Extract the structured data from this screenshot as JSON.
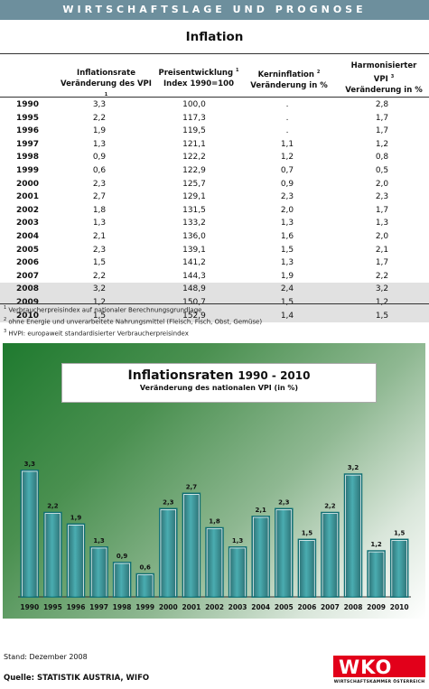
{
  "banner": "WIRTSCHAFTSLAGE UND PROGNOSE",
  "table_title": "Inflation",
  "headers": {
    "c1_line1": "Inflationsrate",
    "c1_line2": "Veränderung des VPI",
    "c1_sup": "1",
    "c2_line1": "Preisentwicklung",
    "c2_sup": "1",
    "c2_line2": "Index 1990=100",
    "c3_line1": "Kerninflation",
    "c3_sup": "2",
    "c3_line2": "Veränderung in %",
    "c4_line1": "Harmonisierter",
    "c4_line2": "VPI",
    "c4_sup": "3",
    "c4_line3": "Veränderung in %"
  },
  "rows": [
    {
      "year": "1990",
      "rate": "3,3",
      "index": "100,0",
      "core": ".",
      "hvpi": "2,8"
    },
    {
      "year": "1995",
      "rate": "2,2",
      "index": "117,3",
      "core": ".",
      "hvpi": "1,7"
    },
    {
      "year": "1996",
      "rate": "1,9",
      "index": "119,5",
      "core": ".",
      "hvpi": "1,7"
    },
    {
      "year": "1997",
      "rate": "1,3",
      "index": "121,1",
      "core": "1,1",
      "hvpi": "1,2"
    },
    {
      "year": "1998",
      "rate": "0,9",
      "index": "122,2",
      "core": "1,2",
      "hvpi": "0,8"
    },
    {
      "year": "1999",
      "rate": "0,6",
      "index": "122,9",
      "core": "0,7",
      "hvpi": "0,5"
    },
    {
      "year": "2000",
      "rate": "2,3",
      "index": "125,7",
      "core": "0,9",
      "hvpi": "2,0"
    },
    {
      "year": "2001",
      "rate": "2,7",
      "index": "129,1",
      "core": "2,3",
      "hvpi": "2,3"
    },
    {
      "year": "2002",
      "rate": "1,8",
      "index": "131,5",
      "core": "2,0",
      "hvpi": "1,7"
    },
    {
      "year": "2003",
      "rate": "1,3",
      "index": "133,2",
      "core": "1,3",
      "hvpi": "1,3"
    },
    {
      "year": "2004",
      "rate": "2,1",
      "index": "136,0",
      "core": "1,6",
      "hvpi": "2,0"
    },
    {
      "year": "2005",
      "rate": "2,3",
      "index": "139,1",
      "core": "1,5",
      "hvpi": "2,1"
    },
    {
      "year": "2006",
      "rate": "1,5",
      "index": "141,2",
      "core": "1,3",
      "hvpi": "1,7"
    },
    {
      "year": "2007",
      "rate": "2,2",
      "index": "144,3",
      "core": "1,9",
      "hvpi": "2,2"
    },
    {
      "year": "2008",
      "rate": "3,2",
      "index": "148,9",
      "core": "2,4",
      "hvpi": "3,2",
      "forecast": true
    },
    {
      "year": "2009",
      "rate": "1,2",
      "index": "150,7",
      "core": "1,5",
      "hvpi": "1,2",
      "forecast": true
    },
    {
      "year": "2010",
      "rate": "1,5",
      "index": "152,9",
      "core": "1,4",
      "hvpi": "1,5",
      "forecast": true
    }
  ],
  "footnotes": [
    {
      "num": "1",
      "text": "Verbraucherpreisindex auf nationaler Berechnungsgrundlage"
    },
    {
      "num": "2",
      "text": "ohne Energie und unverarbeitete Nahrungsmittel (Fleisch, Fisch, Obst, Gemüse)"
    },
    {
      "num": "3",
      "text": "HVPI: europaweit standardisierter Verbraucherpreisindex"
    }
  ],
  "chart_data": {
    "type": "bar",
    "title": "Inflationsraten",
    "title_years": "1990 - 2010",
    "subtitle": "Veränderung des nationalen VPI (in %)",
    "categories": [
      "1990",
      "1995",
      "1996",
      "1997",
      "1998",
      "1999",
      "2000",
      "2001",
      "2002",
      "2003",
      "2004",
      "2005",
      "2006",
      "2007",
      "2008",
      "2009",
      "2010"
    ],
    "values": [
      3.3,
      2.2,
      1.9,
      1.3,
      0.9,
      0.6,
      2.3,
      2.7,
      1.8,
      1.3,
      2.1,
      2.3,
      1.5,
      2.2,
      3.2,
      1.2,
      1.5
    ],
    "value_labels": [
      "3,3",
      "2,2",
      "1,9",
      "1,3",
      "0,9",
      "0,6",
      "2,3",
      "2,7",
      "1,8",
      "1,3",
      "2,1",
      "2,3",
      "1,5",
      "2,2",
      "3,2",
      "1,2",
      "1,5"
    ],
    "ylim": [
      0,
      3.5
    ],
    "grid": false,
    "legend": false,
    "bar_color": "#0f6e73"
  },
  "stand": "Stand: Dezember 2008",
  "quelle": "Quelle: STATISTIK AUSTRIA, WIFO",
  "logo": {
    "letters": "WKO",
    "tagline": "WIRTSCHAFTSKAMMER ÖSTERREICH",
    "color": "#e2001a"
  }
}
